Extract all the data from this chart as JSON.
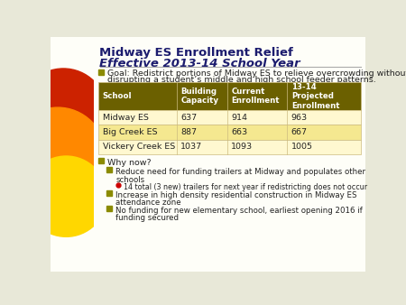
{
  "title_line1": "Midway ES Enrollment Relief",
  "title_line2": "Effective 2013-14 School Year",
  "border_color": "#C8C8A0",
  "slide_bg": "#FEFEF8",
  "goal_text_line1": "Goal: Redistrict portions of Midway ES to relieve overcrowding without",
  "goal_text_line2": "disrupting a student’s middle and high school feeder patterns.",
  "table_header_bg": "#6B6000",
  "table_header_color": "#FFFFFF",
  "table_row1_bg": "#FFF8D0",
  "table_row2_bg": "#F5E890",
  "table_headers": [
    "School",
    "Building\nCapacity",
    "Current\nEnrollment",
    "13-14\nProjected\nEnrollment"
  ],
  "table_data": [
    [
      "Midway ES",
      "637",
      "914",
      "963"
    ],
    [
      "Big Creek ES",
      "887",
      "663",
      "667"
    ],
    [
      "Vickery Creek ES",
      "1037",
      "1093",
      "1005"
    ]
  ],
  "bullet_color": "#8B8B00",
  "red_bullet_color": "#CC0000",
  "why_now": "Why now?",
  "bullets_l1": [
    "Reduce need for funding trailers at Midway and populates other",
    "Increase in high density residential construction in Midway ES",
    "No funding for new elementary school, earliest opening 2016 if"
  ],
  "bullets_l1b": [
    "schools",
    "attendance zone",
    "funding secured"
  ],
  "sub_bullet": "14 total (3 new) trailers for next year if redistricting does not occur",
  "circle_color1": "#CC2200",
  "circle_color2": "#FF8800",
  "circle_color3": "#FFD700",
  "title_color": "#1C1C6E"
}
